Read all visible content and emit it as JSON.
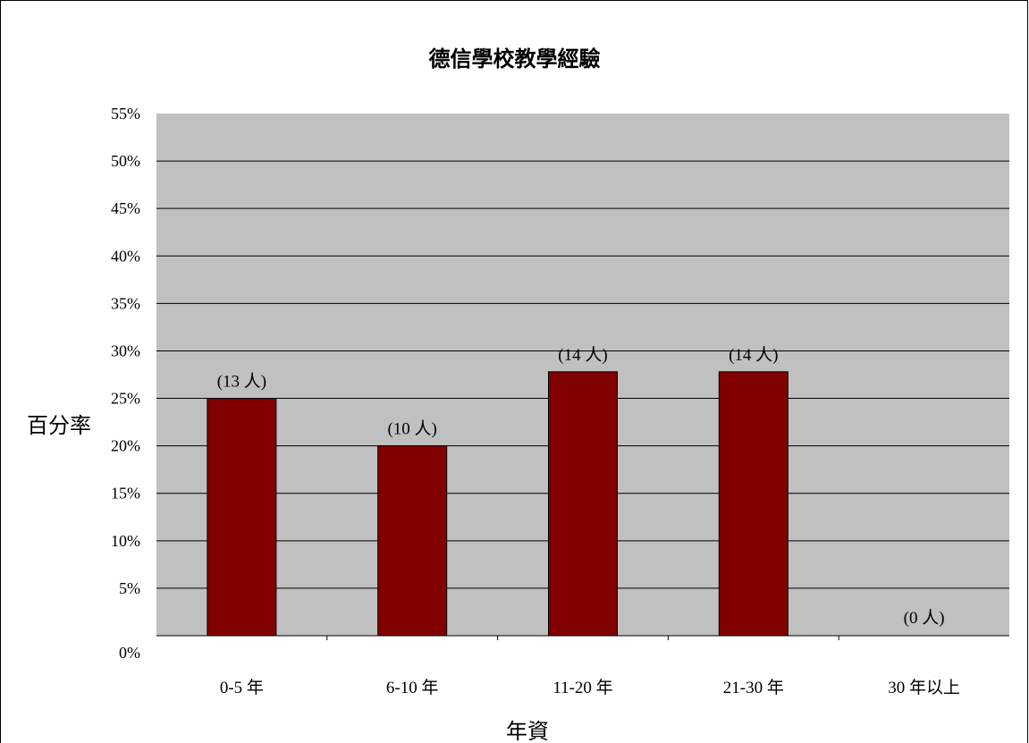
{
  "chart_data": {
    "type": "bar",
    "title": "德信學校教學經驗",
    "xlabel": "年資",
    "ylabel": "百分率",
    "categories": [
      "0-5 年",
      "6-10 年",
      "11-20 年",
      "21-30 年",
      "30 年以上"
    ],
    "values": [
      25,
      20,
      27.8,
      27.8,
      0
    ],
    "data_labels": [
      "(13 人)",
      "(10 人)",
      "(14 人)",
      "(14 人)",
      "(0 人)"
    ],
    "ylim": [
      0,
      55
    ],
    "yticks": [
      "0%",
      "5%",
      "10%",
      "15%",
      "20%",
      "25%",
      "30%",
      "35%",
      "40%",
      "45%",
      "50%",
      "55%"
    ],
    "grid": true,
    "legend": "none",
    "colors": {
      "bar": "#800000",
      "plot_bg": "#c0c0c0",
      "grid": "#000000"
    }
  }
}
